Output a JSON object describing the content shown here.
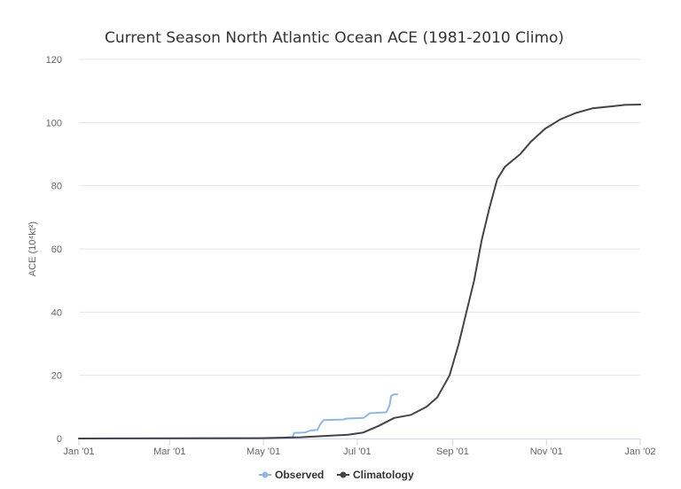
{
  "colors": {
    "background": "#ffffff",
    "grid": "#e6e6e6",
    "axis": "#ccd6eb",
    "observed": "#90b7e4",
    "climatology": "#434348",
    "title": "#333333",
    "tick_label": "#666666"
  },
  "chart_data": {
    "type": "line",
    "title": "Current Season North Atlantic Ocean ACE (1981-2010 Climo)",
    "xlabel": "",
    "ylabel": "ACE (10⁴kt²)",
    "x_type": "date",
    "xlim": [
      "2001-01-01",
      "2002-01-01"
    ],
    "ylim": [
      0,
      120
    ],
    "yticks": [
      0,
      20,
      40,
      60,
      80,
      100,
      120
    ],
    "yticklabels": [
      "0",
      "20",
      "40",
      "60",
      "80",
      "100",
      "120"
    ],
    "xticks": [
      "2001-01-01",
      "2001-03-01",
      "2001-05-01",
      "2001-07-01",
      "2001-09-01",
      "2001-11-01",
      "2002-01-01"
    ],
    "xticklabels": [
      "Jan '01",
      "Mar '01",
      "May '01",
      "Jul '01",
      "Sep '01",
      "Nov '01",
      "Jan '02"
    ],
    "grid": true,
    "legend_position": "bottom-center",
    "series": [
      {
        "name": "Observed",
        "color": "#90b7e4",
        "points": [
          [
            "2001-01-01",
            0
          ],
          [
            "2001-04-15",
            0
          ],
          [
            "2001-05-15",
            0.3
          ],
          [
            "2001-05-20",
            0.5
          ],
          [
            "2001-05-21",
            1.8
          ],
          [
            "2001-05-28",
            1.9
          ],
          [
            "2001-06-01",
            2.6
          ],
          [
            "2001-06-05",
            2.7
          ],
          [
            "2001-06-07",
            4.5
          ],
          [
            "2001-06-09",
            5.8
          ],
          [
            "2001-06-22",
            6.0
          ],
          [
            "2001-06-24",
            6.3
          ],
          [
            "2001-07-05",
            6.5
          ],
          [
            "2001-07-07",
            7.2
          ],
          [
            "2001-07-09",
            8.0
          ],
          [
            "2001-07-20",
            8.3
          ],
          [
            "2001-07-22",
            10.5
          ],
          [
            "2001-07-23",
            13.5
          ],
          [
            "2001-07-25",
            14.0
          ],
          [
            "2001-07-27",
            14.0
          ]
        ]
      },
      {
        "name": "Climatology",
        "color": "#434348",
        "points": [
          [
            "2001-01-01",
            0
          ],
          [
            "2001-05-01",
            0.1
          ],
          [
            "2001-05-25",
            0.4
          ],
          [
            "2001-06-10",
            0.8
          ],
          [
            "2001-06-25",
            1.2
          ],
          [
            "2001-07-05",
            1.9
          ],
          [
            "2001-07-15",
            4.0
          ],
          [
            "2001-07-25",
            6.5
          ],
          [
            "2001-08-05",
            7.5
          ],
          [
            "2001-08-15",
            10.0
          ],
          [
            "2001-08-22",
            13.0
          ],
          [
            "2001-08-30",
            20.0
          ],
          [
            "2001-09-05",
            30.0
          ],
          [
            "2001-09-10",
            40.0
          ],
          [
            "2001-09-15",
            50.0
          ],
          [
            "2001-09-20",
            63.0
          ],
          [
            "2001-09-25",
            73.0
          ],
          [
            "2001-09-30",
            82.0
          ],
          [
            "2001-10-05",
            86.0
          ],
          [
            "2001-10-15",
            90.0
          ],
          [
            "2001-10-22",
            94.0
          ],
          [
            "2001-10-31",
            98.0
          ],
          [
            "2001-11-10",
            101.0
          ],
          [
            "2001-11-20",
            103.0
          ],
          [
            "2001-12-01",
            104.5
          ],
          [
            "2001-12-15",
            105.2
          ],
          [
            "2001-12-22",
            105.6
          ],
          [
            "2002-01-01",
            105.7
          ]
        ]
      }
    ]
  }
}
